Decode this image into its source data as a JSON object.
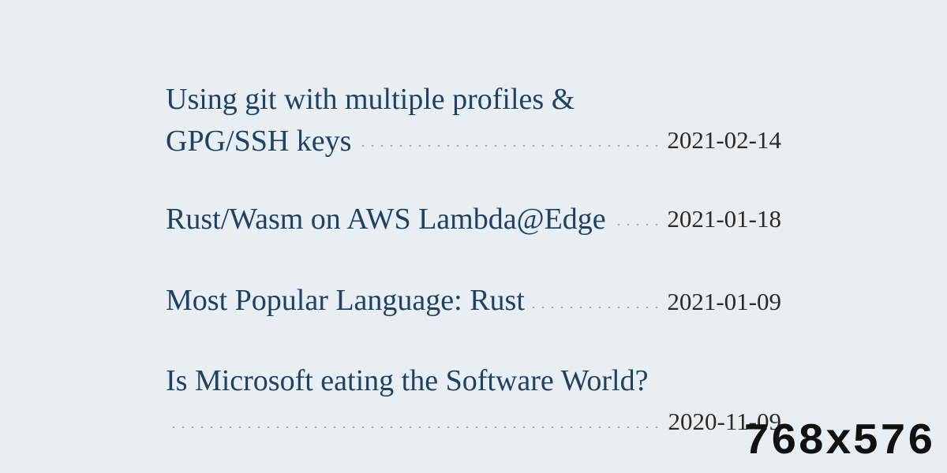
{
  "posts": [
    {
      "title": "Using git with multiple profiles & GPG/SSH keys",
      "date": "2021-02-14"
    },
    {
      "title": "Rust/Wasm on AWS Lambda@Edge",
      "date": "2021-01-18"
    },
    {
      "title": "Most Popular Language: Rust",
      "date": "2021-01-09"
    },
    {
      "title": "Is Microsoft eating the Software World?",
      "date": "2020-11-09"
    }
  ],
  "overlay": {
    "label": "768x576"
  },
  "colors": {
    "background": "#e9eef3",
    "title": "#1f4163",
    "date": "#2a2a2a",
    "leader_dots": "#9aa9b8",
    "overlay_text": "#111111"
  }
}
